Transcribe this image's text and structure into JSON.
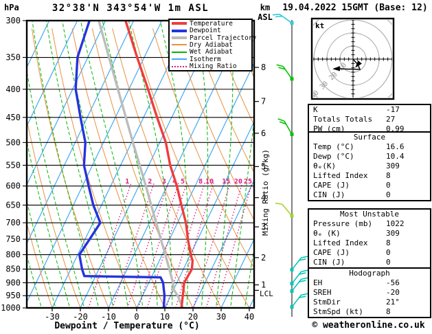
{
  "header": {
    "station_title": "32°38'N 343°54'W 1m ASL",
    "datetime_title": "19.04.2022 15GMT (Base: 12)"
  },
  "labels": {
    "pressure_unit": "hPa",
    "km": "km",
    "asl": "ASL",
    "kt": "kt",
    "lcl": "LCL",
    "x_axis_title": "Dewpoint / Temperature (°C)",
    "mixing_axis_title": "Mixing Ratio (g/kg)"
  },
  "legend": {
    "items": [
      {
        "label": "Temperature",
        "css": "background:#f03c3c;height:4px"
      },
      {
        "label": "Dewpoint",
        "css": "background:#2433dd;height:4px"
      },
      {
        "label": "Parcel Trajectory",
        "css": "background:#bcbcbc;height:4px"
      },
      {
        "label": "Dry Adiabat",
        "css": "background:#e8913f;height:2px"
      },
      {
        "label": "Wet Adiabat",
        "css": "background:#00b800;height:2px"
      },
      {
        "label": "Isotherm",
        "css": "background:#3fa8f5;height:2px"
      },
      {
        "label": "Mixing Ratio",
        "css": "height:0;border-top:2px dotted #e0187e"
      }
    ]
  },
  "tables": {
    "indices": {
      "rows": [
        {
          "label": "K",
          "value": "-17"
        },
        {
          "label": "Totals Totals",
          "value": "27"
        },
        {
          "label": "PW (cm)",
          "value": "0.99"
        }
      ]
    },
    "surface": {
      "title": "Surface",
      "rows": [
        {
          "label": "Temp (°C)",
          "value": "16.6"
        },
        {
          "label": "Dewp (°C)",
          "value": "10.4"
        },
        {
          "label": "θₑ(K)",
          "value": "309"
        },
        {
          "label": "Lifted Index",
          "value": "8"
        },
        {
          "label": "CAPE (J)",
          "value": "0"
        },
        {
          "label": "CIN (J)",
          "value": "0"
        }
      ]
    },
    "most_unstable": {
      "title": "Most Unstable",
      "rows": [
        {
          "label": "Pressure (mb)",
          "value": "1022"
        },
        {
          "label": "θₑ (K)",
          "value": "309"
        },
        {
          "label": "Lifted Index",
          "value": "8"
        },
        {
          "label": "CAPE (J)",
          "value": "0"
        },
        {
          "label": "CIN (J)",
          "value": "0"
        }
      ]
    },
    "hodograph_stats": {
      "title": "Hodograph",
      "rows": [
        {
          "label": "EH",
          "value": "-56"
        },
        {
          "label": "SREH",
          "value": "-20"
        },
        {
          "label": "StmDir",
          "value": "21°"
        },
        {
          "label": "StmSpd (kt)",
          "value": "8"
        }
      ]
    }
  },
  "footer": {
    "credit": "© weatheronline.co.uk"
  },
  "colors": {
    "temperature": "#f03c3c",
    "dewpoint": "#2433dd",
    "parcel": "#bcbcbc",
    "dry_adiabat": "#e8913f",
    "wet_adiabat": "#00b800",
    "isotherm": "#3fa8f5",
    "mixing_ratio": "#e0187e",
    "barb_low": "#00c8b4",
    "barb_mid": "#00c400",
    "barb_upper": "#30c8e0",
    "hodo_rings": "#b0b0b0"
  },
  "chart_data": {
    "type": "skewt-sounding",
    "title": "32°38'N 343°54'W 1m ASL",
    "valid": "19.04.2022 15GMT (Base: 12)",
    "pressure_axis_hpa": [
      300,
      350,
      400,
      450,
      500,
      550,
      600,
      650,
      700,
      750,
      800,
      850,
      900,
      950,
      1000
    ],
    "temp_axis_c": [
      -30,
      -20,
      -10,
      0,
      10,
      20,
      30,
      40
    ],
    "km_ticks": [
      {
        "km": 1,
        "p": 908
      },
      {
        "km": 2,
        "p": 810
      },
      {
        "km": 3,
        "p": 712
      },
      {
        "km": 4,
        "p": 630
      },
      {
        "km": 5,
        "p": 553
      },
      {
        "km": 6,
        "p": 481
      },
      {
        "km": 7,
        "p": 421
      },
      {
        "km": 8,
        "p": 365
      }
    ],
    "lcl_pressure_hpa": 929,
    "mixing_ratio_lines_gkg": [
      1,
      2,
      3,
      4,
      5,
      8,
      10,
      15,
      20,
      25
    ],
    "temperature_profile_p_c": [
      [
        300,
        -52.9
      ],
      [
        350,
        -42.5
      ],
      [
        400,
        -33.2
      ],
      [
        450,
        -25.2
      ],
      [
        500,
        -17.8
      ],
      [
        550,
        -12.4
      ],
      [
        600,
        -6.5
      ],
      [
        650,
        -1.6
      ],
      [
        700,
        3.0
      ],
      [
        750,
        6.5
      ],
      [
        800,
        10.1
      ],
      [
        820,
        11.8
      ],
      [
        850,
        13.0
      ],
      [
        900,
        12.6
      ],
      [
        950,
        14.3
      ],
      [
        1000,
        15.9
      ]
    ],
    "dewpoint_profile_p_c": [
      [
        300,
        -65.7
      ],
      [
        350,
        -63.7
      ],
      [
        400,
        -58.9
      ],
      [
        450,
        -52.4
      ],
      [
        500,
        -46.4
      ],
      [
        550,
        -43.0
      ],
      [
        600,
        -37.8
      ],
      [
        650,
        -32.9
      ],
      [
        700,
        -27.4
      ],
      [
        750,
        -28.4
      ],
      [
        800,
        -29.4
      ],
      [
        850,
        -26.0
      ],
      [
        875,
        -24.0
      ],
      [
        880,
        3.3
      ],
      [
        900,
        5.1
      ],
      [
        950,
        7.8
      ],
      [
        1000,
        9.6
      ]
    ],
    "parcel_profile_p_c": [
      [
        300,
        -62.4
      ],
      [
        400,
        -43.9
      ],
      [
        500,
        -29.5
      ],
      [
        600,
        -17.5
      ],
      [
        700,
        -7.6
      ],
      [
        800,
        1.1
      ],
      [
        850,
        5.0
      ],
      [
        900,
        8.6
      ],
      [
        929,
        10.3
      ],
      [
        950,
        12.5
      ],
      [
        1000,
        16.4
      ]
    ],
    "wind_barbs": [
      {
        "p": 303,
        "color": "#30c8e0",
        "angle": -55,
        "ticks": 2
      },
      {
        "p": 383,
        "color": "#00c400",
        "angle": -35,
        "ticks": 2
      },
      {
        "p": 483,
        "color": "#00c400",
        "angle": -30,
        "ticks": 2
      },
      {
        "p": 680,
        "color": "#a6d42a",
        "angle": -40,
        "ticks": 1
      },
      {
        "p": 852,
        "color": "#00c8b4",
        "angle": 38,
        "ticks": 2
      },
      {
        "p": 903,
        "color": "#00c8b4",
        "angle": 38,
        "ticks": 2
      },
      {
        "p": 932,
        "color": "#00c8b4",
        "angle": 38,
        "ticks": 2
      },
      {
        "p": 996,
        "color": "#00c8b4",
        "angle": 38,
        "ticks": 2
      }
    ],
    "hodograph": {
      "unit": "kt",
      "ring_step_kt": 10,
      "ring_labels": [
        10,
        20,
        30,
        40
      ],
      "trace_uv_kt": [
        [
          0,
          0
        ],
        [
          3.7,
          -4.2
        ],
        [
          5.3,
          -7.9
        ],
        [
          -12.6,
          -7.4
        ]
      ],
      "storm_dir_deg": 21,
      "storm_spd_kt": 8
    }
  }
}
